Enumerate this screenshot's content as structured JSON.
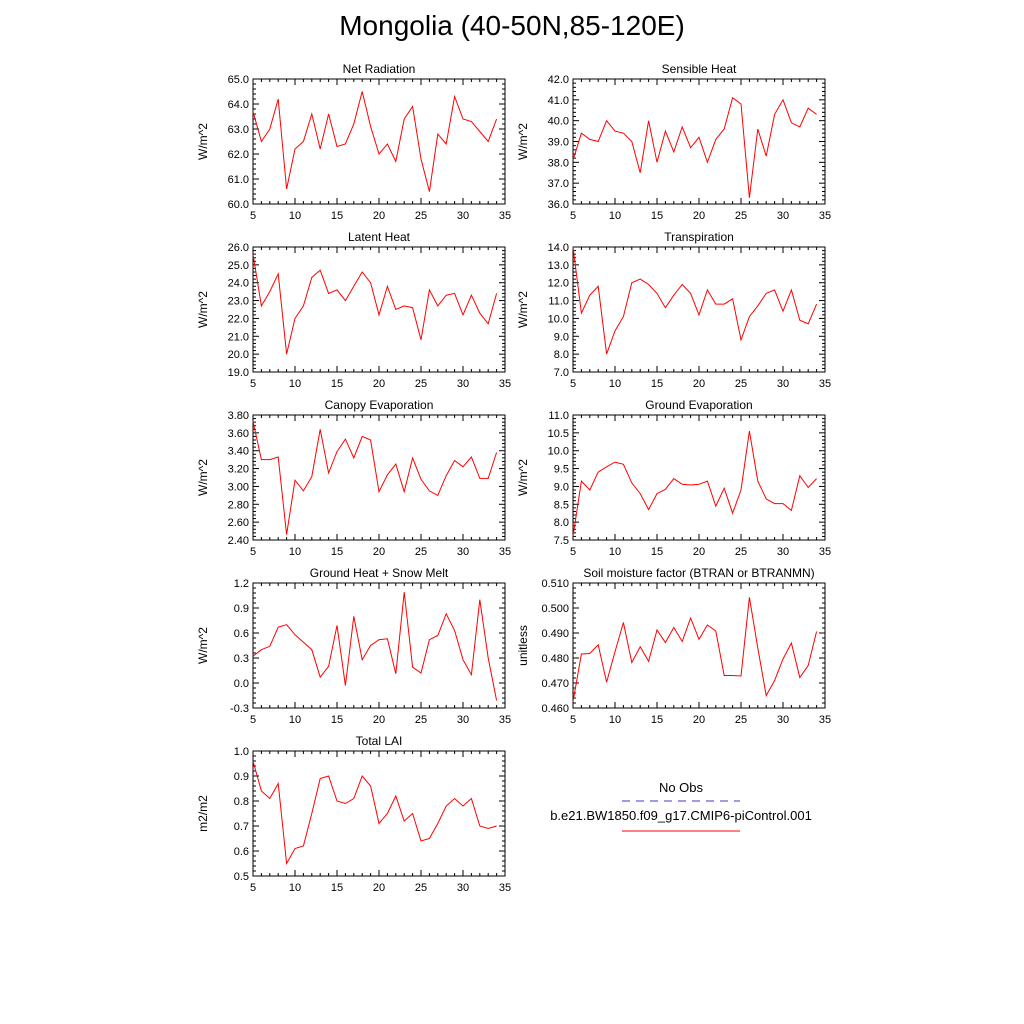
{
  "title": "Mongolia (40-50N,85-120E)",
  "legend": {
    "entries": [
      {
        "label": "No Obs",
        "color": "#3b3bd6",
        "dash": true
      },
      {
        "label": "b.e21.BW1850.f09_g17.CMIP6-piControl.001",
        "color": "#ff0000",
        "dash": false
      }
    ]
  },
  "chart_data": [
    {
      "type": "line",
      "title": "Net Radiation",
      "ylabel": "W/m^2",
      "xlim": [
        5,
        35
      ],
      "xticks": [
        5,
        10,
        15,
        20,
        25,
        30,
        35
      ],
      "ylim": [
        60,
        65
      ],
      "yticks": [
        "60.0",
        "61.0",
        "62.0",
        "63.0",
        "64.0",
        "65.0"
      ],
      "color": "#ff0000",
      "x": [
        5,
        6,
        7,
        8,
        9,
        10,
        11,
        12,
        13,
        14,
        15,
        16,
        17,
        18,
        19,
        20,
        21,
        22,
        23,
        24,
        25,
        26,
        27,
        28,
        29,
        30,
        31,
        32,
        33,
        34
      ],
      "y": [
        63.7,
        62.5,
        63.0,
        64.2,
        60.6,
        62.2,
        62.5,
        63.6,
        62.2,
        63.6,
        62.3,
        62.4,
        63.2,
        64.5,
        63.1,
        62.0,
        62.4,
        61.7,
        63.4,
        63.9,
        61.8,
        60.5,
        62.8,
        62.4,
        64.3,
        63.4,
        63.3,
        62.9,
        62.5,
        63.4
      ]
    },
    {
      "type": "line",
      "title": "Sensible Heat",
      "ylabel": "W/m^2",
      "xlim": [
        5,
        35
      ],
      "xticks": [
        5,
        10,
        15,
        20,
        25,
        30,
        35
      ],
      "ylim": [
        36,
        42
      ],
      "yticks": [
        "36.0",
        "37.0",
        "38.0",
        "39.0",
        "40.0",
        "41.0",
        "42.0"
      ],
      "color": "#ff0000",
      "x": [
        5,
        6,
        7,
        8,
        9,
        10,
        11,
        12,
        13,
        14,
        15,
        16,
        17,
        18,
        19,
        20,
        21,
        22,
        23,
        24,
        25,
        26,
        27,
        28,
        29,
        30,
        31,
        32,
        33,
        34
      ],
      "y": [
        38.1,
        39.4,
        39.1,
        39.0,
        40.0,
        39.5,
        39.4,
        39.0,
        37.5,
        40.0,
        38.0,
        39.5,
        38.5,
        39.7,
        38.7,
        39.2,
        38.0,
        39.1,
        39.6,
        41.1,
        40.8,
        36.3,
        39.6,
        38.3,
        40.3,
        41.0,
        39.9,
        39.7,
        40.6,
        40.3
      ]
    },
    {
      "type": "line",
      "title": "Latent Heat",
      "ylabel": "W/m^2",
      "xlim": [
        5,
        35
      ],
      "xticks": [
        5,
        10,
        15,
        20,
        25,
        30,
        35
      ],
      "ylim": [
        19,
        26
      ],
      "yticks": [
        "19.0",
        "20.0",
        "21.0",
        "22.0",
        "23.0",
        "24.0",
        "25.0",
        "26.0"
      ],
      "color": "#ff0000",
      "x": [
        5,
        6,
        7,
        8,
        9,
        10,
        11,
        12,
        13,
        14,
        15,
        16,
        17,
        18,
        19,
        20,
        21,
        22,
        23,
        24,
        25,
        26,
        27,
        28,
        29,
        30,
        31,
        32,
        33,
        34
      ],
      "y": [
        25.6,
        22.7,
        23.5,
        24.5,
        20.0,
        22.0,
        22.7,
        24.3,
        24.7,
        23.4,
        23.6,
        23.0,
        23.8,
        24.6,
        24.0,
        22.2,
        23.8,
        22.5,
        22.7,
        22.6,
        20.8,
        23.6,
        22.7,
        23.3,
        23.4,
        22.2,
        23.3,
        22.3,
        21.7,
        23.4
      ]
    },
    {
      "type": "line",
      "title": "Transpiration",
      "ylabel": "W/m^2",
      "xlim": [
        5,
        35
      ],
      "xticks": [
        5,
        10,
        15,
        20,
        25,
        30,
        35
      ],
      "ylim": [
        7,
        14
      ],
      "yticks": [
        "7.0",
        "8.0",
        "9.0",
        "10.0",
        "11.0",
        "12.0",
        "13.0",
        "14.0"
      ],
      "color": "#ff0000",
      "x": [
        5,
        6,
        7,
        8,
        9,
        10,
        11,
        12,
        13,
        14,
        15,
        16,
        17,
        18,
        19,
        20,
        21,
        22,
        23,
        24,
        25,
        26,
        27,
        28,
        29,
        30,
        31,
        32,
        33,
        34
      ],
      "y": [
        14.0,
        10.3,
        11.3,
        11.8,
        8.0,
        9.3,
        10.1,
        12.0,
        12.2,
        11.9,
        11.4,
        10.6,
        11.3,
        11.9,
        11.4,
        10.2,
        11.6,
        10.8,
        10.8,
        11.1,
        8.8,
        10.1,
        10.7,
        11.4,
        11.6,
        10.4,
        11.6,
        9.9,
        9.7,
        10.8
      ]
    },
    {
      "type": "line",
      "title": "Canopy Evaporation",
      "ylabel": "W/m^2",
      "xlim": [
        5,
        35
      ],
      "xticks": [
        5,
        10,
        15,
        20,
        25,
        30,
        35
      ],
      "ylim": [
        2.4,
        3.8
      ],
      "yticks": [
        "2.40",
        "2.60",
        "2.80",
        "3.00",
        "3.20",
        "3.40",
        "3.60",
        "3.80"
      ],
      "color": "#ff0000",
      "x": [
        5,
        6,
        7,
        8,
        9,
        10,
        11,
        12,
        13,
        14,
        15,
        16,
        17,
        18,
        19,
        20,
        21,
        22,
        23,
        24,
        25,
        26,
        27,
        28,
        29,
        30,
        31,
        32,
        33,
        34
      ],
      "y": [
        3.73,
        3.3,
        3.3,
        3.33,
        2.46,
        3.07,
        2.95,
        3.11,
        3.64,
        3.15,
        3.39,
        3.53,
        3.32,
        3.56,
        3.52,
        2.94,
        3.13,
        3.25,
        2.94,
        3.32,
        3.08,
        2.95,
        2.9,
        3.12,
        3.29,
        3.22,
        3.33,
        3.09,
        3.09,
        3.38
      ]
    },
    {
      "type": "line",
      "title": "Ground Evaporation",
      "ylabel": "W/m^2",
      "xlim": [
        5,
        35
      ],
      "xticks": [
        5,
        10,
        15,
        20,
        25,
        30,
        35
      ],
      "ylim": [
        7.5,
        11
      ],
      "yticks": [
        "7.5",
        "8.0",
        "8.5",
        "9.0",
        "9.5",
        "10.0",
        "10.5",
        "11.0"
      ],
      "color": "#ff0000",
      "x": [
        5,
        6,
        7,
        8,
        9,
        10,
        11,
        12,
        13,
        14,
        15,
        16,
        17,
        18,
        19,
        20,
        21,
        22,
        23,
        24,
        25,
        26,
        27,
        28,
        29,
        30,
        31,
        32,
        33,
        34
      ],
      "y": [
        7.6,
        9.15,
        8.9,
        9.4,
        9.55,
        9.68,
        9.62,
        9.1,
        8.8,
        8.35,
        8.8,
        8.92,
        9.22,
        9.06,
        9.04,
        9.06,
        9.15,
        8.45,
        8.95,
        8.25,
        8.9,
        10.55,
        9.15,
        8.65,
        8.52,
        8.52,
        8.33,
        9.3,
        8.97,
        9.22
      ]
    },
    {
      "type": "line",
      "title": "Ground Heat + Snow Melt",
      "ylabel": "W/m^2",
      "xlim": [
        5,
        35
      ],
      "xticks": [
        5,
        10,
        15,
        20,
        25,
        30,
        35
      ],
      "ylim": [
        -0.3,
        1.2
      ],
      "yticks": [
        "-0.3",
        "0.0",
        "0.3",
        "0.6",
        "0.9",
        "1.2"
      ],
      "color": "#ff0000",
      "x": [
        5,
        6,
        7,
        8,
        9,
        10,
        11,
        12,
        13,
        14,
        15,
        16,
        17,
        18,
        19,
        20,
        21,
        22,
        23,
        24,
        25,
        26,
        27,
        28,
        29,
        30,
        31,
        32,
        33,
        34
      ],
      "y": [
        0.32,
        0.4,
        0.44,
        0.67,
        0.7,
        0.58,
        0.49,
        0.4,
        0.07,
        0.2,
        0.69,
        -0.03,
        0.8,
        0.28,
        0.45,
        0.52,
        0.53,
        0.11,
        1.09,
        0.19,
        0.12,
        0.52,
        0.57,
        0.83,
        0.63,
        0.28,
        0.1,
        1.0,
        0.3,
        -0.21
      ]
    },
    {
      "type": "line",
      "title": "Soil moisture factor (BTRAN or BTRANMN)",
      "ylabel": "unitless",
      "xlim": [
        5,
        35
      ],
      "xticks": [
        5,
        10,
        15,
        20,
        25,
        30,
        35
      ],
      "ylim": [
        0.46,
        0.51
      ],
      "yticks": [
        "0.460",
        "0.470",
        "0.480",
        "0.490",
        "0.500",
        "0.510"
      ],
      "color": "#ff0000",
      "x": [
        5,
        6,
        7,
        8,
        9,
        10,
        11,
        12,
        13,
        14,
        15,
        16,
        17,
        18,
        19,
        20,
        21,
        22,
        23,
        24,
        25,
        26,
        27,
        28,
        29,
        30,
        31,
        32,
        33,
        34
      ],
      "y": [
        0.4625,
        0.4816,
        0.4818,
        0.4853,
        0.4703,
        0.4825,
        0.4942,
        0.4782,
        0.4845,
        0.4787,
        0.4912,
        0.4862,
        0.4922,
        0.4866,
        0.496,
        0.4875,
        0.4932,
        0.4908,
        0.473,
        0.473,
        0.4728,
        0.5043,
        0.484,
        0.465,
        0.471,
        0.4796,
        0.486,
        0.4722,
        0.477,
        0.4906
      ]
    },
    {
      "type": "line",
      "title": "Total LAI",
      "ylabel": "m2/m2",
      "xlim": [
        5,
        35
      ],
      "xticks": [
        5,
        10,
        15,
        20,
        25,
        30,
        35
      ],
      "ylim": [
        0.5,
        1.0
      ],
      "yticks": [
        "0.5",
        "0.6",
        "0.7",
        "0.8",
        "0.9",
        "1.0"
      ],
      "color": "#ff0000",
      "x": [
        5,
        6,
        7,
        8,
        9,
        10,
        11,
        12,
        13,
        14,
        15,
        16,
        17,
        18,
        19,
        20,
        21,
        22,
        23,
        24,
        25,
        26,
        27,
        28,
        29,
        30,
        31,
        32,
        33,
        34
      ],
      "y": [
        0.96,
        0.84,
        0.81,
        0.87,
        0.55,
        0.61,
        0.62,
        0.75,
        0.89,
        0.9,
        0.8,
        0.79,
        0.81,
        0.9,
        0.86,
        0.71,
        0.75,
        0.82,
        0.72,
        0.75,
        0.64,
        0.65,
        0.71,
        0.78,
        0.81,
        0.78,
        0.81,
        0.7,
        0.69,
        0.7
      ]
    }
  ]
}
